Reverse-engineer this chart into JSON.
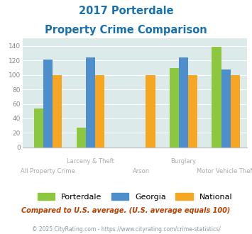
{
  "title_line1": "2017 Porterdale",
  "title_line2": "Property Crime Comparison",
  "porterdale": [
    54,
    27,
    null,
    109,
    139
  ],
  "georgia": [
    121,
    124,
    null,
    124,
    107
  ],
  "national": [
    100,
    100,
    100,
    100,
    100
  ],
  "porterdale_color": "#8dc63f",
  "georgia_color": "#4d8fcc",
  "national_color": "#f5a623",
  "ylim": [
    0,
    150
  ],
  "yticks": [
    0,
    20,
    40,
    60,
    80,
    100,
    120,
    140
  ],
  "background_color": "#ddeaea",
  "grid_color": "#ffffff",
  "subtitle": "Compared to U.S. average. (U.S. average equals 100)",
  "footer": "© 2025 CityRating.com - https://www.cityrating.com/crime-statistics/",
  "title_color": "#1a6faf",
  "subtitle_color": "#b84000",
  "footer_color": "#8899aa",
  "xlabel_color": "#aaaaaa",
  "bar_width": 0.22,
  "group_positions": [
    0.5,
    1.5,
    2.7,
    3.7,
    4.7
  ]
}
